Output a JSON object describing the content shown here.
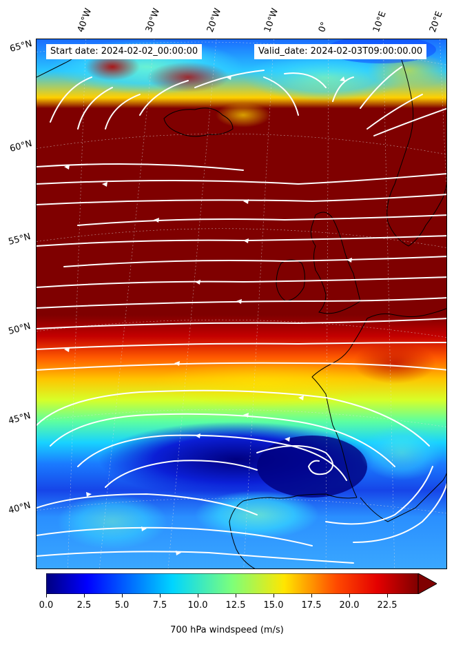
{
  "header": {
    "start_date": "Start date: 2024-02-02_00:00:00",
    "valid_date": "Valid_date: 2024-02-03T09:00:00.00"
  },
  "longitude_labels": [
    "40°W",
    "30°W",
    "20°W",
    "10°W",
    "0°",
    "10°E",
    "20°E"
  ],
  "latitude_labels": [
    "65°N",
    "60°N",
    "55°N",
    "50°N",
    "45°N",
    "40°N"
  ],
  "colorbar": {
    "label": "700 hPa windspeed (m/s)",
    "ticks": [
      "0.0",
      "2.5",
      "5.0",
      "7.5",
      "10.0",
      "12.5",
      "15.0",
      "17.5",
      "20.0",
      "22.5"
    ],
    "min": 0,
    "max": 25,
    "extend": "max",
    "colormap": "jet"
  },
  "map": {
    "field": "700 hPa windspeed",
    "units": "m/s",
    "overlay": "streamlines",
    "coastlines": true,
    "gridlines": "dashed"
  }
}
